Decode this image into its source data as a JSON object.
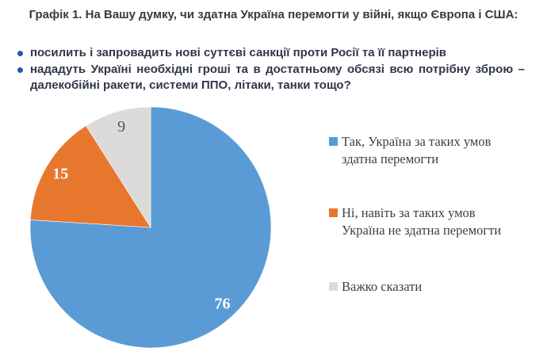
{
  "title": "Графік 1. На Вашу думку, чи здатна Україна перемогти у війні, якщо Європа і США:",
  "bullets": {
    "items": [
      {
        "text": "посилить і запровадить нові суттєві санкції проти Росії та її партнерів"
      },
      {
        "text": "нададуть Україні необхідні гроші та в достатньому обсязі всю потрібну зброю – далекобійні ракети, системи ППО, літаки, танки тощо?"
      }
    ]
  },
  "chart_data": {
    "type": "pie",
    "title": "Графік 1. На Вашу думку, чи здатна Україна перемогти у війні, якщо Європа і США:",
    "categories": [
      "Так, Україна за таких умов здатна перемогти",
      "Ні, навіть за таких умов Україна не здатна перемогти",
      "Важко сказати"
    ],
    "values": [
      76,
      15,
      9
    ],
    "data_labels": [
      "76",
      "15",
      "9"
    ],
    "colors": [
      "#5B9BD5",
      "#E8772E",
      "#DCDBD9"
    ],
    "label_colors": [
      "#FFFFFF",
      "#FFFFFF",
      "#595959"
    ],
    "label_weights": [
      "bold",
      "bold",
      "normal"
    ],
    "start_angle": "12-oclock",
    "direction": "clockwise",
    "legend_position": "right"
  },
  "legend": {
    "items": [
      {
        "lines": [
          "Так, Україна за таких умов",
          "здатна перемогти"
        ],
        "color": "#5B9BD5"
      },
      {
        "lines": [
          "Ні, навіть за таких умов",
          "Україна не здатна перемогти"
        ],
        "color": "#E8772E"
      },
      {
        "lines": [
          "Важко сказати"
        ],
        "color": "#DCDBD9"
      }
    ]
  },
  "colors": {
    "title_text": "#3A3A3A",
    "bullet_text": "#2F3748",
    "bullet_dot": "#2458A6",
    "legend_text": "#3F3F3F",
    "background": "#FFFFFF"
  }
}
